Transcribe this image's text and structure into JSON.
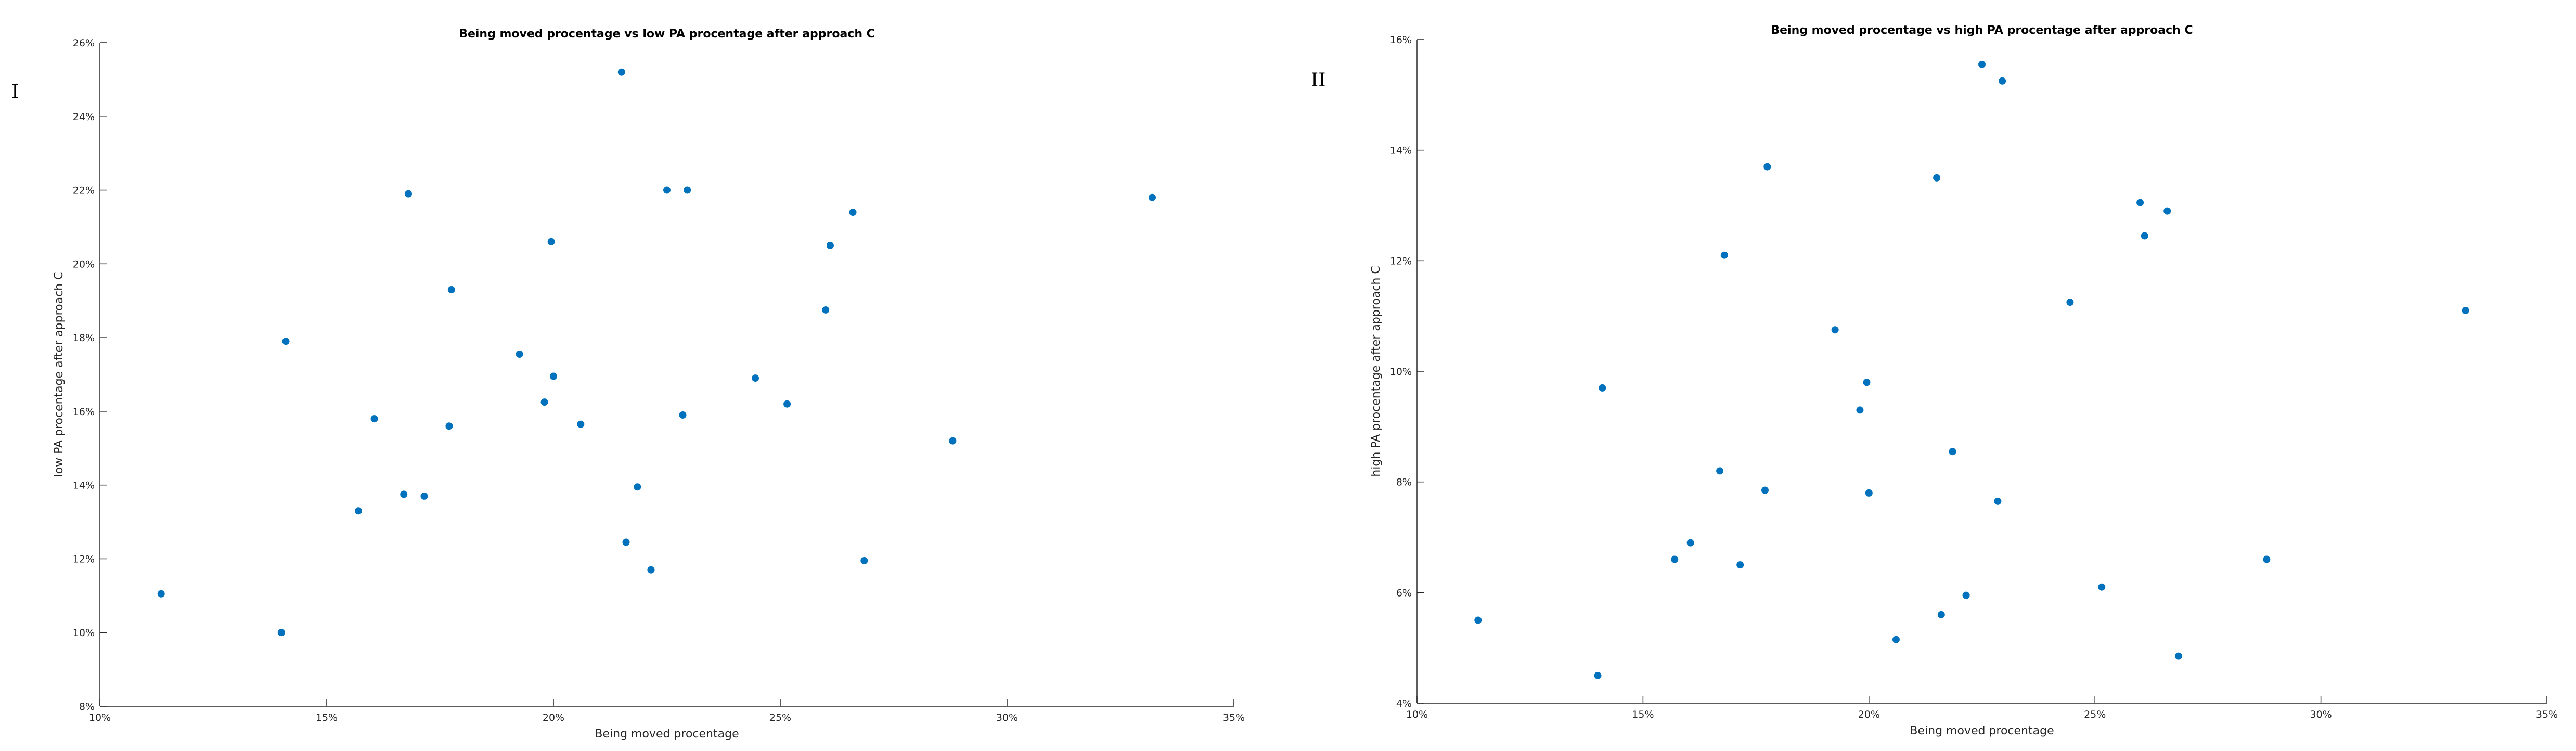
{
  "chart_data": [
    {
      "type": "scatter",
      "panel_label": "I",
      "title": "Being moved procentage vs low PA procentage after approach C",
      "xlabel": "Being moved procentage",
      "ylabel": "low PA procentage after approach C",
      "xlim": [
        10,
        35
      ],
      "ylim": [
        8,
        26
      ],
      "x_tick_labels": [
        "10%",
        "15%",
        "20%",
        "25%",
        "30%",
        "35%"
      ],
      "y_tick_labels": [
        "8%",
        "10%",
        "12%",
        "14%",
        "16%",
        "18%",
        "20%",
        "22%",
        "24%",
        "26%"
      ],
      "grid": false,
      "color": "#0072BD",
      "points": [
        {
          "x": 11.35,
          "y": 11.05
        },
        {
          "x": 14.0,
          "y": 10.0
        },
        {
          "x": 14.1,
          "y": 17.9
        },
        {
          "x": 15.7,
          "y": 13.3
        },
        {
          "x": 16.05,
          "y": 15.8
        },
        {
          "x": 16.7,
          "y": 13.75
        },
        {
          "x": 16.8,
          "y": 21.9
        },
        {
          "x": 17.15,
          "y": 13.7
        },
        {
          "x": 17.7,
          "y": 15.6
        },
        {
          "x": 17.75,
          "y": 19.3
        },
        {
          "x": 19.25,
          "y": 17.55
        },
        {
          "x": 19.8,
          "y": 16.25
        },
        {
          "x": 19.95,
          "y": 20.6
        },
        {
          "x": 20.0,
          "y": 16.95
        },
        {
          "x": 20.6,
          "y": 15.65
        },
        {
          "x": 21.5,
          "y": 25.2
        },
        {
          "x": 21.6,
          "y": 12.45
        },
        {
          "x": 21.85,
          "y": 13.95
        },
        {
          "x": 22.15,
          "y": 11.7
        },
        {
          "x": 22.5,
          "y": 22.0
        },
        {
          "x": 22.85,
          "y": 15.9
        },
        {
          "x": 22.95,
          "y": 22.0
        },
        {
          "x": 24.45,
          "y": 16.9
        },
        {
          "x": 25.15,
          "y": 16.2
        },
        {
          "x": 26.0,
          "y": 18.75
        },
        {
          "x": 26.1,
          "y": 20.5
        },
        {
          "x": 26.6,
          "y": 21.4
        },
        {
          "x": 26.85,
          "y": 11.95
        },
        {
          "x": 28.8,
          "y": 15.2
        },
        {
          "x": 33.2,
          "y": 21.8
        }
      ]
    },
    {
      "type": "scatter",
      "panel_label": "II",
      "title": "Being moved procentage vs high PA procentage after approach C",
      "xlabel": "Being moved procentage",
      "ylabel": "high PA procentage after approach C",
      "xlim": [
        10,
        35
      ],
      "ylim": [
        4,
        16
      ],
      "x_tick_labels": [
        "10%",
        "15%",
        "20%",
        "25%",
        "30%",
        "35%"
      ],
      "y_tick_labels": [
        "4%",
        "6%",
        "8%",
        "10%",
        "12%",
        "14%",
        "16%"
      ],
      "grid": false,
      "color": "#0072BD",
      "points": [
        {
          "x": 11.35,
          "y": 5.5
        },
        {
          "x": 14.0,
          "y": 4.5
        },
        {
          "x": 14.1,
          "y": 9.7
        },
        {
          "x": 15.7,
          "y": 6.6
        },
        {
          "x": 16.05,
          "y": 6.9
        },
        {
          "x": 16.7,
          "y": 8.2
        },
        {
          "x": 16.8,
          "y": 12.1
        },
        {
          "x": 17.15,
          "y": 6.5
        },
        {
          "x": 17.7,
          "y": 7.85
        },
        {
          "x": 17.75,
          "y": 13.7
        },
        {
          "x": 19.25,
          "y": 10.75
        },
        {
          "x": 19.8,
          "y": 9.3
        },
        {
          "x": 19.95,
          "y": 9.8
        },
        {
          "x": 20.0,
          "y": 7.8
        },
        {
          "x": 20.6,
          "y": 5.15
        },
        {
          "x": 21.5,
          "y": 13.5
        },
        {
          "x": 21.6,
          "y": 5.6
        },
        {
          "x": 21.85,
          "y": 8.55
        },
        {
          "x": 22.15,
          "y": 5.95
        },
        {
          "x": 22.5,
          "y": 15.55
        },
        {
          "x": 22.85,
          "y": 7.65
        },
        {
          "x": 22.95,
          "y": 15.25
        },
        {
          "x": 24.45,
          "y": 11.25
        },
        {
          "x": 25.15,
          "y": 6.1
        },
        {
          "x": 26.0,
          "y": 13.05
        },
        {
          "x": 26.1,
          "y": 12.45
        },
        {
          "x": 26.6,
          "y": 12.9
        },
        {
          "x": 26.85,
          "y": 4.85
        },
        {
          "x": 28.8,
          "y": 6.6
        },
        {
          "x": 33.2,
          "y": 11.1
        }
      ]
    }
  ]
}
